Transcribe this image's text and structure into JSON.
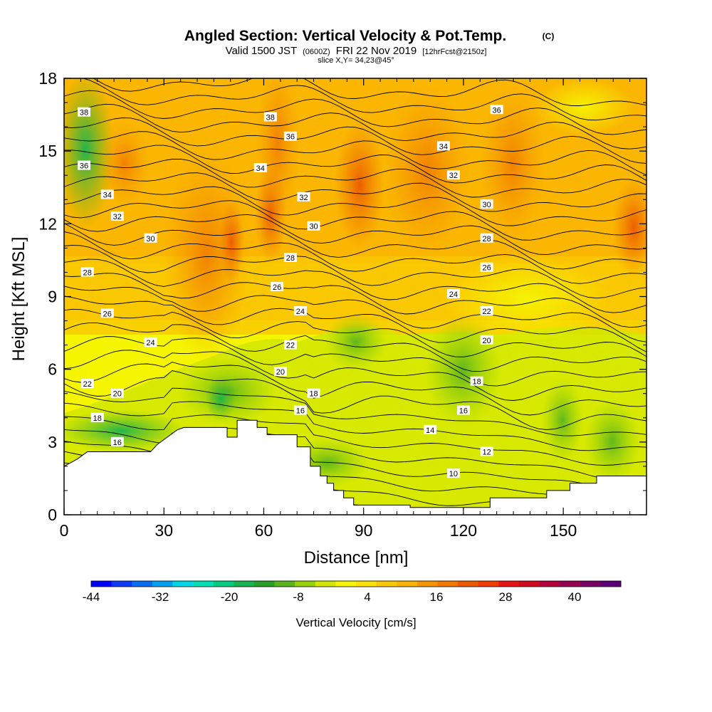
{
  "chart_data": {
    "type": "heatmap",
    "title": "Angled Section: Vertical Velocity & Pot.Temp.",
    "title_suffix": "(C)",
    "subtitle": {
      "valid": "Valid 1500 JST",
      "utc": "(0600Z)",
      "date": "FRI 22 Nov 2019",
      "forecast": "[12hrFcst@2150z]"
    },
    "slice_label": "slice X,Y= 34,23@45°",
    "xlabel": "Distance [nm]",
    "ylabel": "Height [Kft MSL]",
    "xlim": [
      0,
      175
    ],
    "ylim": [
      0,
      18
    ],
    "x_ticks": [
      "0",
      "30",
      "60",
      "90",
      "120",
      "150"
    ],
    "y_ticks": [
      "0",
      "3",
      "6",
      "9",
      "12",
      "15",
      "18"
    ],
    "colorbar": {
      "label": "Vertical Velocity [cm/s]",
      "ticks": [
        "-44",
        "-32",
        "-20",
        "-8",
        "4",
        "16",
        "28",
        "40"
      ],
      "colors": [
        "#0000ff",
        "#0a3cf5",
        "#0a6cf0",
        "#00a0f0",
        "#00d7e6",
        "#00e0b4",
        "#00cd82",
        "#19b450",
        "#28a028",
        "#5ab41e",
        "#96d20a",
        "#d2e600",
        "#f5f500",
        "#fae100",
        "#fac800",
        "#fab400",
        "#f59600",
        "#f07800",
        "#eb5a00",
        "#f03c00",
        "#e61414",
        "#d20a1e",
        "#b4003c",
        "#960050",
        "#780064",
        "#5a0078"
      ]
    },
    "terrain_ft": [
      [
        0,
        2000
      ],
      [
        4,
        2300
      ],
      [
        7,
        2600
      ],
      [
        16,
        2600
      ],
      [
        26,
        2600
      ],
      [
        28,
        2900
      ],
      [
        31,
        3200
      ],
      [
        34,
        3500
      ],
      [
        36,
        3600
      ],
      [
        49,
        3600
      ],
      [
        49,
        3200
      ],
      [
        52,
        3200
      ],
      [
        52,
        3900
      ],
      [
        58,
        3900
      ],
      [
        58,
        3600
      ],
      [
        61,
        3600
      ],
      [
        61,
        3300
      ],
      [
        70,
        3300
      ],
      [
        70,
        2800
      ],
      [
        74,
        2800
      ],
      [
        74,
        2000
      ],
      [
        77,
        2000
      ],
      [
        77,
        1600
      ],
      [
        79,
        1600
      ],
      [
        79,
        1300
      ],
      [
        81,
        1300
      ],
      [
        81,
        1000
      ],
      [
        84,
        1000
      ],
      [
        84,
        700
      ],
      [
        87,
        700
      ],
      [
        87,
        400
      ],
      [
        97,
        400
      ],
      [
        104,
        400
      ],
      [
        104,
        300
      ],
      [
        117,
        300
      ],
      [
        128,
        300
      ],
      [
        128,
        700
      ],
      [
        145,
        700
      ],
      [
        145,
        1000
      ],
      [
        152,
        1000
      ],
      [
        152,
        1300
      ],
      [
        160,
        1300
      ],
      [
        160,
        1600
      ],
      [
        175,
        1600
      ]
    ],
    "isotherm_labels": [
      {
        "value": "38",
        "x": 6,
        "y": 16.6
      },
      {
        "value": "36",
        "x": 6,
        "y": 14.4
      },
      {
        "value": "34",
        "x": 13,
        "y": 13.2
      },
      {
        "value": "32",
        "x": 16,
        "y": 12.3
      },
      {
        "value": "30",
        "x": 26,
        "y": 11.4
      },
      {
        "value": "28",
        "x": 7,
        "y": 10.0
      },
      {
        "value": "26",
        "x": 13,
        "y": 8.3
      },
      {
        "value": "24",
        "x": 26,
        "y": 7.1
      },
      {
        "value": "22",
        "x": 7,
        "y": 5.4
      },
      {
        "value": "20",
        "x": 16,
        "y": 5.0
      },
      {
        "value": "18",
        "x": 10,
        "y": 4.0
      },
      {
        "value": "16",
        "x": 16,
        "y": 3.0
      },
      {
        "value": "38",
        "x": 62,
        "y": 16.4
      },
      {
        "value": "36",
        "x": 68,
        "y": 15.6
      },
      {
        "value": "34",
        "x": 59,
        "y": 14.3
      },
      {
        "value": "32",
        "x": 72,
        "y": 13.1
      },
      {
        "value": "30",
        "x": 75,
        "y": 11.9
      },
      {
        "value": "28",
        "x": 68,
        "y": 10.6
      },
      {
        "value": "26",
        "x": 64,
        "y": 9.4
      },
      {
        "value": "24",
        "x": 71,
        "y": 8.4
      },
      {
        "value": "22",
        "x": 68,
        "y": 7.0
      },
      {
        "value": "20",
        "x": 65,
        "y": 5.9
      },
      {
        "value": "18",
        "x": 75,
        "y": 5.0
      },
      {
        "value": "16",
        "x": 71,
        "y": 4.3
      },
      {
        "value": "14",
        "x": 110,
        "y": 3.5
      },
      {
        "value": "36",
        "x": 130,
        "y": 16.7
      },
      {
        "value": "34",
        "x": 114,
        "y": 15.2
      },
      {
        "value": "32",
        "x": 117,
        "y": 14.0
      },
      {
        "value": "30",
        "x": 127,
        "y": 12.8
      },
      {
        "value": "28",
        "x": 127,
        "y": 11.4
      },
      {
        "value": "26",
        "x": 127,
        "y": 10.2
      },
      {
        "value": "24",
        "x": 117,
        "y": 9.1
      },
      {
        "value": "22",
        "x": 127,
        "y": 8.4
      },
      {
        "value": "20",
        "x": 127,
        "y": 7.2
      },
      {
        "value": "18",
        "x": 124,
        "y": 5.5
      },
      {
        "value": "16",
        "x": 120,
        "y": 4.3
      },
      {
        "value": "12",
        "x": 127,
        "y": 2.6
      },
      {
        "value": "10",
        "x": 117,
        "y": 1.7
      }
    ]
  }
}
